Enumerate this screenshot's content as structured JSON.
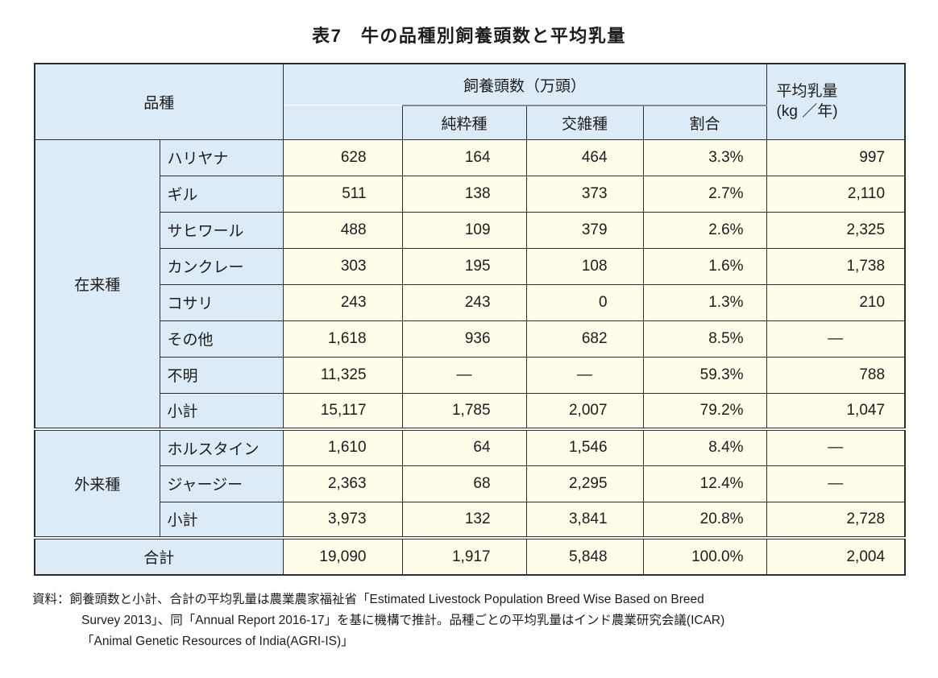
{
  "title": "表7　牛の品種別飼養頭数と平均乳量",
  "colors": {
    "header_bg": "#dcebf6",
    "cell_bg": "#fffde9",
    "border": "#2d2d2d"
  },
  "table": {
    "header": {
      "breed": "品種",
      "heads_group": "飼養頭数（万頭）",
      "sub": [
        "純粋種",
        "交雑種",
        "割合"
      ],
      "milk_line1": "平均乳量",
      "milk_line2": "(kg ／年)"
    },
    "groups": [
      {
        "name": "在来種",
        "rows": [
          {
            "breed": "ハリヤナ",
            "total": "628",
            "pure": "164",
            "cross": "464",
            "ratio": "3.3%",
            "milk": "997"
          },
          {
            "breed": "ギル",
            "total": "511",
            "pure": "138",
            "cross": "373",
            "ratio": "2.7%",
            "milk": "2,110"
          },
          {
            "breed": "サヒワール",
            "total": "488",
            "pure": "109",
            "cross": "379",
            "ratio": "2.6%",
            "milk": "2,325"
          },
          {
            "breed": "カンクレー",
            "total": "303",
            "pure": "195",
            "cross": "108",
            "ratio": "1.6%",
            "milk": "1,738"
          },
          {
            "breed": "コサリ",
            "total": "243",
            "pure": "243",
            "cross": "0",
            "ratio": "1.3%",
            "milk": "210"
          },
          {
            "breed": "その他",
            "total": "1,618",
            "pure": "936",
            "cross": "682",
            "ratio": "8.5%",
            "milk": "—"
          },
          {
            "breed": "不明",
            "total": "11,325",
            "pure": "—",
            "cross": "—",
            "ratio": "59.3%",
            "milk": "788"
          },
          {
            "breed": "小計",
            "total": "15,117",
            "pure": "1,785",
            "cross": "2,007",
            "ratio": "79.2%",
            "milk": "1,047"
          }
        ]
      },
      {
        "name": "外来種",
        "rows": [
          {
            "breed": "ホルスタイン",
            "total": "1,610",
            "pure": "64",
            "cross": "1,546",
            "ratio": "8.4%",
            "milk": "—"
          },
          {
            "breed": "ジャージー",
            "total": "2,363",
            "pure": "68",
            "cross": "2,295",
            "ratio": "12.4%",
            "milk": "—"
          },
          {
            "breed": "小計",
            "total": "3,973",
            "pure": "132",
            "cross": "3,841",
            "ratio": "20.8%",
            "milk": "2,728"
          }
        ]
      }
    ],
    "total": {
      "label": "合計",
      "total": "19,090",
      "pure": "1,917",
      "cross": "5,848",
      "ratio": "100.0%",
      "milk": "2,004"
    }
  },
  "source": {
    "lines": [
      "資料：飼養頭数と小計、合計の平均乳量は農業農家福祉省「Estimated Livestock Population Breed Wise Based on Breed",
      "Survey 2013」、同「Annual Report 2016-17」を基に機構で推計。品種ごとの平均乳量はインド農業研究会議(ICAR)",
      "「Animal Genetic Resources of India(AGRI-IS)」"
    ]
  }
}
